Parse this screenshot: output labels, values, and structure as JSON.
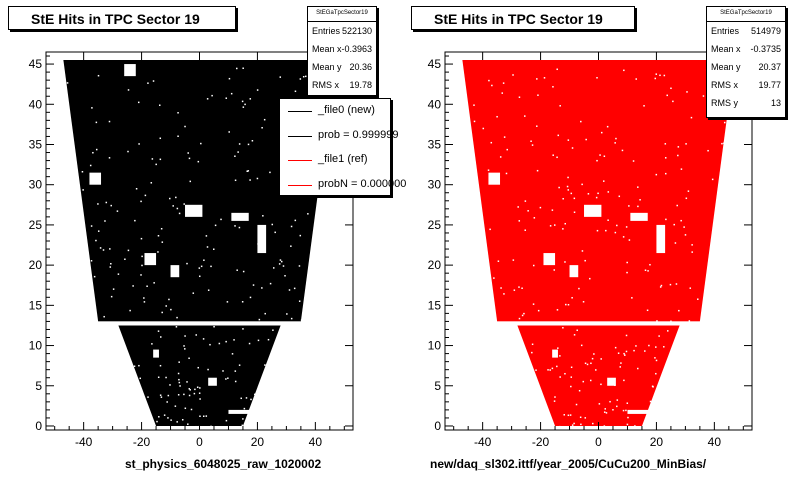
{
  "footer_text": "",
  "panels": [
    {
      "title": "StE Hits in TPC Sector 19",
      "xtitle": "st_physics_6048025_raw_1020002",
      "color": "#000000",
      "stats": {
        "name": "StEGaTpcSector19",
        "rows": [
          {
            "label": "Entries",
            "value": "522130"
          },
          {
            "label": "Mean x",
            "value": "-0.3963"
          },
          {
            "label": "Mean y",
            "value": "20.36"
          },
          {
            "label": "RMS x",
            "value": "19.78"
          }
        ]
      },
      "legend": [
        {
          "label": "_file0 (new)",
          "color": "#000000"
        },
        {
          "label": "prob = 0.999999",
          "color": "#000000"
        },
        {
          "label": "_file1 (ref)",
          "color": "#ff0000"
        },
        {
          "label": "probN = 0.000000",
          "color": "#ff0000"
        }
      ]
    },
    {
      "title": "StE Hits in TPC Sector 19",
      "xtitle": "new/daq_sl302.ittf/year_2005/CuCu200_MinBias/",
      "color": "#ff0000",
      "stats": {
        "name": "StEGaTpcSector19",
        "rows": [
          {
            "label": "Entries",
            "value": "514979"
          },
          {
            "label": "Mean x",
            "value": "-0.3735"
          },
          {
            "label": "Mean y",
            "value": "20.37"
          },
          {
            "label": "RMS x",
            "value": "19.77"
          },
          {
            "label": "RMS y",
            "value": "13"
          }
        ]
      }
    }
  ],
  "chart_data": [
    {
      "type": "heatmap",
      "title": "StE Hits in TPC Sector 19",
      "xlabel": "st_physics_6048025_raw_1020002",
      "ylabel": "",
      "xlim": [
        -53,
        53
      ],
      "ylim": [
        -0.5,
        46.5
      ],
      "x_ticks": [
        -40,
        -20,
        0,
        20,
        40
      ],
      "y_ticks": [
        0,
        5,
        10,
        15,
        20,
        25,
        30,
        35,
        40,
        45
      ],
      "grid": false,
      "fill_color": "#000000",
      "outer_sector": {
        "y_range": [
          13,
          45.5
        ],
        "half_width_bottom": 35,
        "half_width_top": 47
      },
      "inner_sector": {
        "y_range": [
          0,
          12.5
        ],
        "half_width_bottom": 15,
        "half_width_top": 28
      },
      "gaps": [
        {
          "x": [
            -26,
            -22
          ],
          "y": [
            43.5,
            45
          ]
        },
        {
          "x": [
            -38,
            -34
          ],
          "y": [
            30,
            31.5
          ]
        },
        {
          "x": [
            -5,
            1
          ],
          "y": [
            26,
            27.5
          ]
        },
        {
          "x": [
            11,
            17
          ],
          "y": [
            25.5,
            26.5
          ]
        },
        {
          "x": [
            20,
            23
          ],
          "y": [
            21.5,
            25
          ]
        },
        {
          "x": [
            -19,
            -15
          ],
          "y": [
            20,
            21.5
          ]
        },
        {
          "x": [
            -10,
            -7
          ],
          "y": [
            18.5,
            20
          ]
        },
        {
          "x": [
            -45,
            45
          ],
          "y": [
            12.5,
            13
          ]
        },
        {
          "x": [
            -16,
            -14
          ],
          "y": [
            8.5,
            9.5
          ]
        },
        {
          "x": [
            3,
            6
          ],
          "y": [
            5,
            6
          ]
        },
        {
          "x": [
            10,
            18
          ],
          "y": [
            1.5,
            2
          ]
        }
      ]
    },
    {
      "type": "heatmap",
      "title": "StE Hits in TPC Sector 19",
      "xlabel": "new/daq_sl302.ittf/year_2005/CuCu200_MinBias/",
      "ylabel": "",
      "xlim": [
        -53,
        53
      ],
      "ylim": [
        -0.5,
        46.5
      ],
      "x_ticks": [
        -40,
        -20,
        0,
        20,
        40
      ],
      "y_ticks": [
        0,
        5,
        10,
        15,
        20,
        25,
        30,
        35,
        40,
        45
      ],
      "grid": false,
      "fill_color": "#ff0000",
      "outer_sector": {
        "y_range": [
          13,
          45.5
        ],
        "half_width_bottom": 35,
        "half_width_top": 47
      },
      "inner_sector": {
        "y_range": [
          0,
          12.5
        ],
        "half_width_bottom": 15,
        "half_width_top": 28
      },
      "gaps": [
        {
          "x": [
            -38,
            -34
          ],
          "y": [
            30,
            31.5
          ]
        },
        {
          "x": [
            -5,
            1
          ],
          "y": [
            26,
            27.5
          ]
        },
        {
          "x": [
            11,
            17
          ],
          "y": [
            25.5,
            26.5
          ]
        },
        {
          "x": [
            20,
            23
          ],
          "y": [
            21.5,
            25
          ]
        },
        {
          "x": [
            -19,
            -15
          ],
          "y": [
            20,
            21.5
          ]
        },
        {
          "x": [
            -10,
            -7
          ],
          "y": [
            18.5,
            20
          ]
        },
        {
          "x": [
            -45,
            45
          ],
          "y": [
            12.5,
            13
          ]
        },
        {
          "x": [
            -16,
            -14
          ],
          "y": [
            8.5,
            9.5
          ]
        },
        {
          "x": [
            3,
            6
          ],
          "y": [
            5,
            6
          ]
        },
        {
          "x": [
            10,
            18
          ],
          "y": [
            1.5,
            2
          ]
        }
      ]
    }
  ]
}
